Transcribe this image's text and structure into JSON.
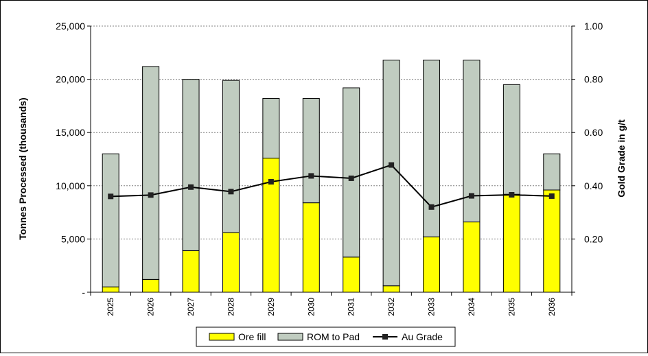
{
  "chart_data": {
    "type": "bar",
    "stacked": true,
    "categories": [
      "2025",
      "2026",
      "2027",
      "2028",
      "2029",
      "2030",
      "2031",
      "2032",
      "2033",
      "2034",
      "2035",
      "2036"
    ],
    "series": [
      {
        "name": "Ore fill",
        "kind": "bar",
        "axis": "left",
        "color": "#ffff00",
        "values": [
          500,
          1200,
          3900,
          5600,
          12600,
          8400,
          3300,
          600,
          5200,
          6600,
          9200,
          9600
        ]
      },
      {
        "name": "ROM to Pad",
        "kind": "bar",
        "axis": "left",
        "color": "#c0ccc0",
        "values": [
          12500,
          20000,
          16100,
          14300,
          5600,
          9800,
          15900,
          21200,
          16600,
          15200,
          10300,
          3400
        ]
      },
      {
        "name": "Au Grade",
        "kind": "line",
        "axis": "right",
        "color": "#000000",
        "values": [
          0.36,
          0.365,
          0.395,
          0.378,
          0.415,
          0.437,
          0.428,
          0.478,
          0.32,
          0.362,
          0.366,
          0.361
        ]
      }
    ],
    "ylabel": "Tonnes Processed (thousands)",
    "y2label": "Gold Grade in g/t",
    "ylim": [
      0,
      25000
    ],
    "y2lim": [
      0,
      1.0
    ],
    "yticks": [
      "-",
      "5,000",
      "10,000",
      "15,000",
      "20,000",
      "25,000"
    ],
    "y2ticks": [
      "",
      "0.20",
      "0.40",
      "0.60",
      "0.80",
      "1.00"
    ],
    "grid": true,
    "legend_position": "bottom-center"
  }
}
